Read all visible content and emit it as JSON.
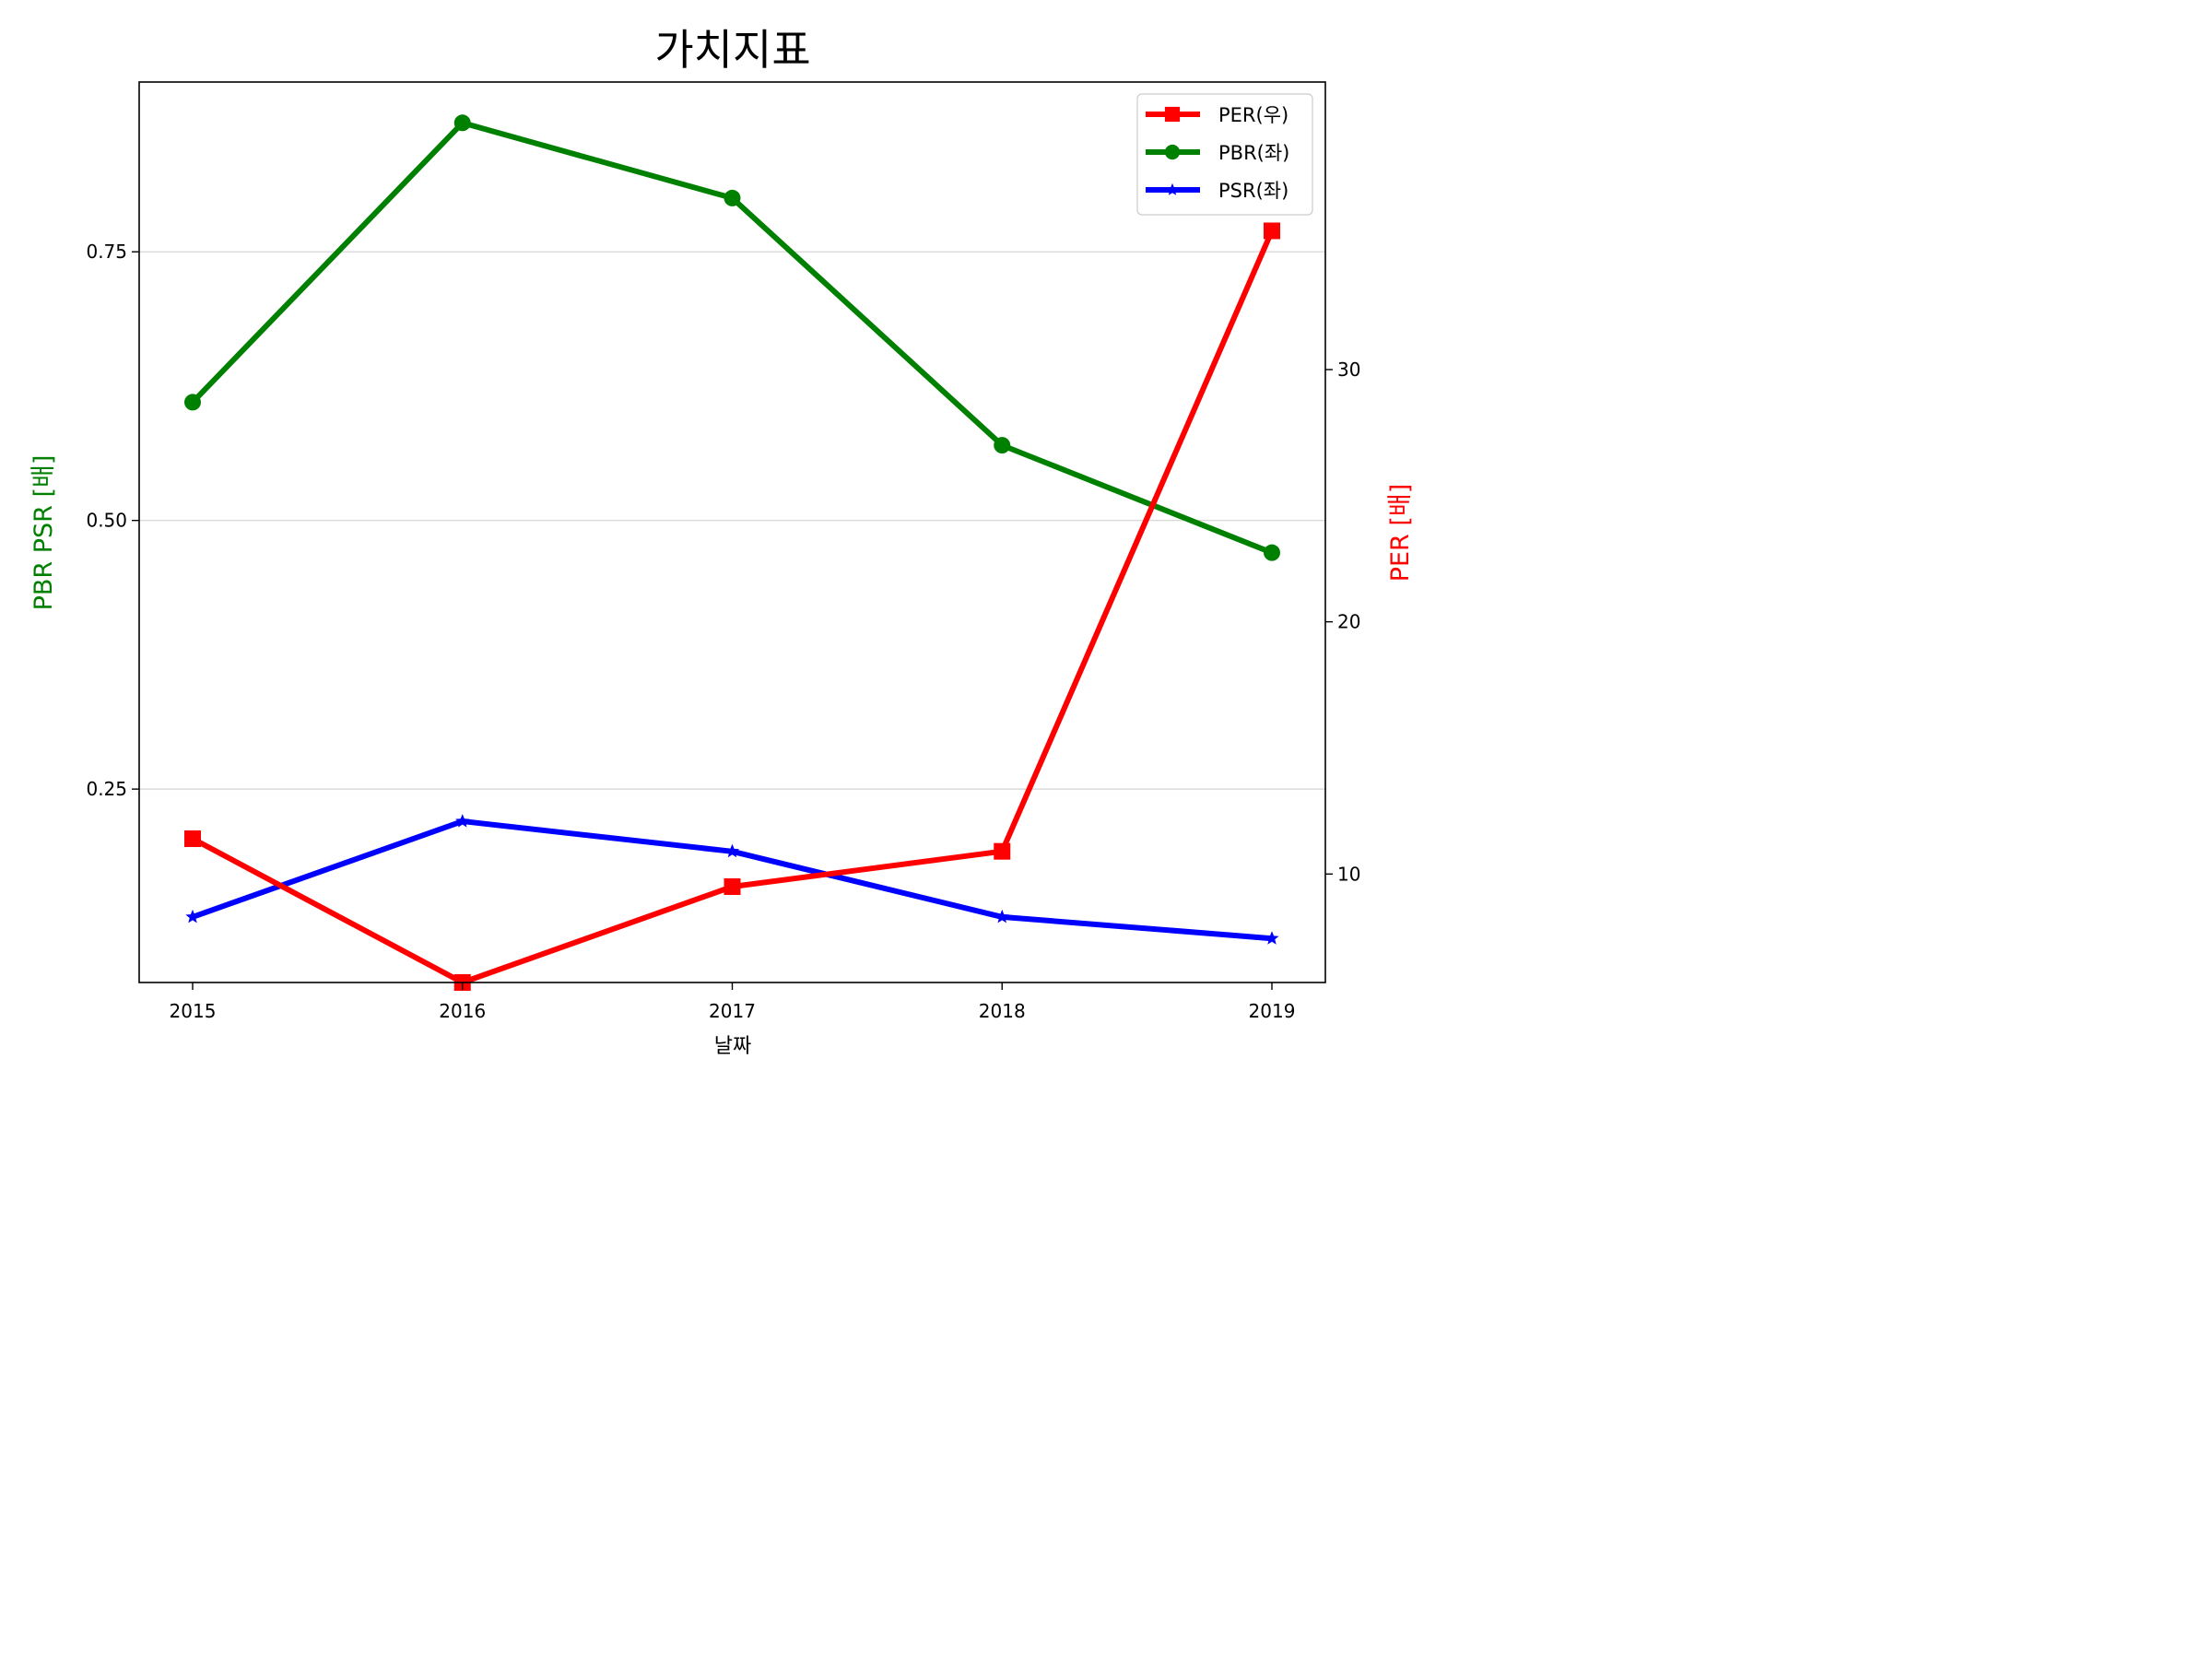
{
  "chart_data": {
    "type": "line",
    "title": "가치지표",
    "xlabel": "날짜",
    "ylabel_left": "PBR PSR [배]",
    "ylabel_right": "PER [배]",
    "x": [
      "2015",
      "2016",
      "2017",
      "2018",
      "2019"
    ],
    "left_axis": {
      "range": [
        0.07,
        0.908
      ],
      "ticks": [
        "0.25",
        "0.50",
        "0.75"
      ],
      "tick_values": [
        0.25,
        0.5,
        0.75
      ],
      "grid": true
    },
    "right_axis": {
      "range": [
        5.7,
        41.4
      ],
      "ticks": [
        "10",
        "20",
        "30"
      ],
      "tick_values": [
        10,
        20,
        30
      ]
    },
    "series": [
      {
        "name": "PER(우)",
        "axis": "right",
        "color": "#ff0000",
        "marker": "square",
        "values": [
          11.4,
          5.7,
          9.5,
          10.9,
          35.5
        ]
      },
      {
        "name": "PBR(좌)",
        "axis": "left",
        "color": "#008000",
        "marker": "circle",
        "values": [
          0.61,
          0.87,
          0.8,
          0.57,
          0.47
        ]
      },
      {
        "name": "PSR(좌)",
        "axis": "left",
        "color": "#0000ff",
        "marker": "star",
        "values": [
          0.131,
          0.22,
          0.192,
          0.131,
          0.111
        ]
      }
    ],
    "legend_position": "top-right"
  }
}
